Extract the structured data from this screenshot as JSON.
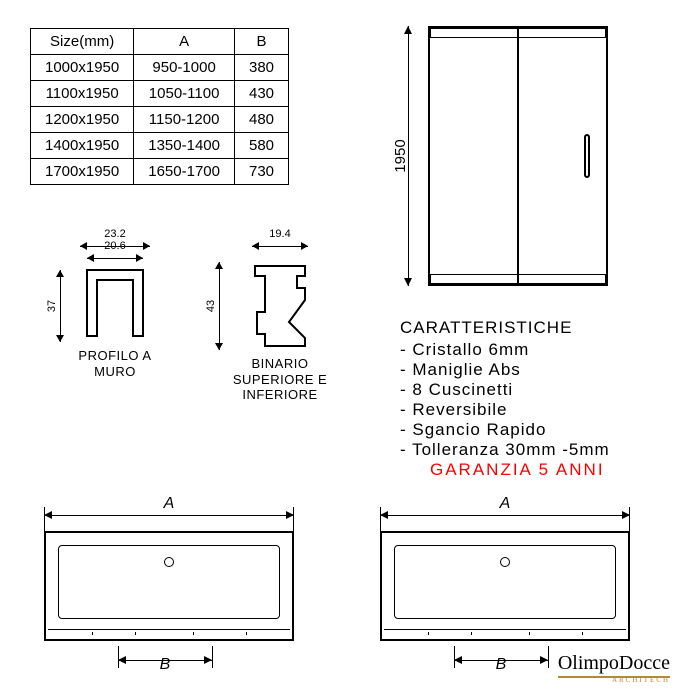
{
  "table": {
    "headers": [
      "Size(mm)",
      "A",
      "B"
    ],
    "rows": [
      [
        "1000x1950",
        "950-1000",
        "380"
      ],
      [
        "1100x1950",
        "1050-1100",
        "430"
      ],
      [
        "1200x1950",
        "1150-1200",
        "480"
      ],
      [
        "1400x1950",
        "1350-1400",
        "580"
      ],
      [
        "1700x1950",
        "1650-1700",
        "730"
      ]
    ]
  },
  "door": {
    "height_label": "1950"
  },
  "profiles": {
    "wall": {
      "label": "PROFILO A\nMURO",
      "dim_outer": "23.2",
      "dim_inner": "20.6",
      "dim_height": "37"
    },
    "rail": {
      "label": "BINARIO\nSUPERIORE E\nINFERIORE",
      "dim_width": "19.4",
      "dim_height": "43"
    }
  },
  "characteristics": {
    "title": "CARATTERISTICHE",
    "items": [
      "Cristallo 6mm",
      "Maniglie Abs",
      "8 Cuscinetti",
      "Reversibile",
      "Sgancio Rapido",
      "Tolleranza 30mm -5mm"
    ],
    "warranty": "GARANZIA 5 ANNI",
    "warranty_color": "#ff0000"
  },
  "plan": {
    "label_a": "A",
    "label_b": "B"
  },
  "logo": {
    "name": "OlimpoDocce",
    "sub": "ARCHITECH",
    "accent_color": "#b38b2e"
  },
  "style": {
    "text_color": "#000000",
    "background": "#ffffff",
    "line_color": "#000000"
  }
}
